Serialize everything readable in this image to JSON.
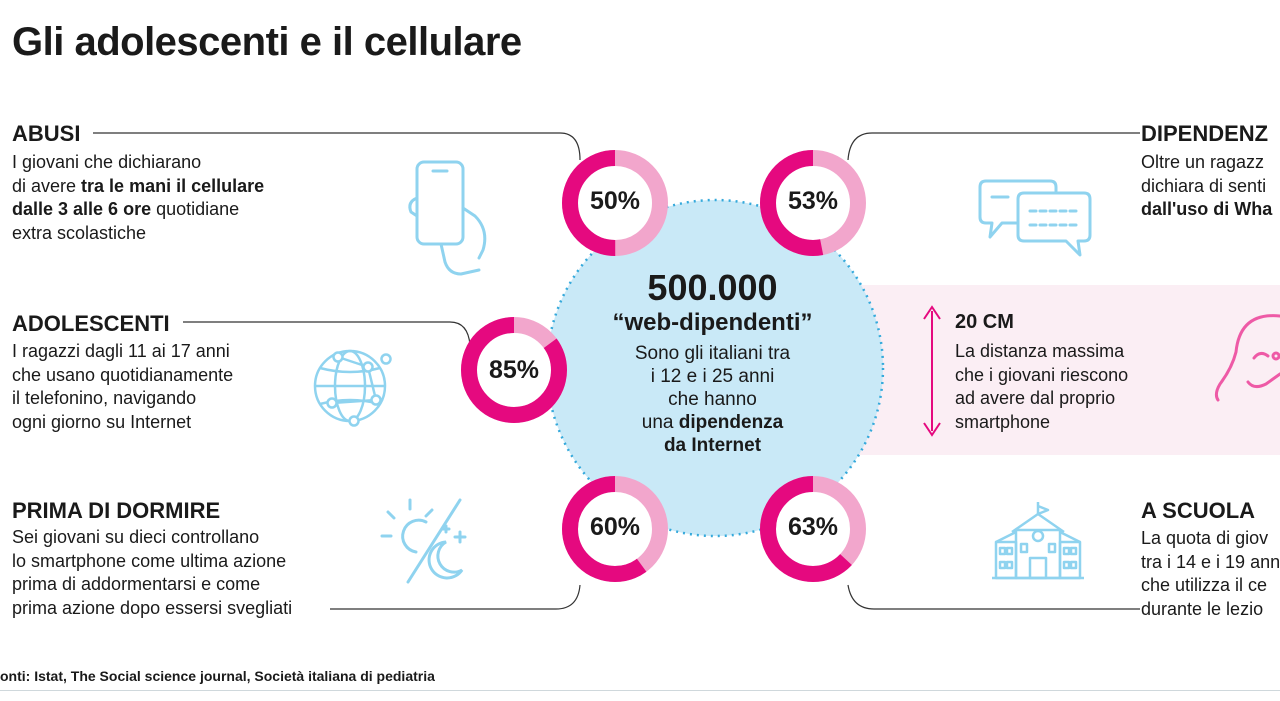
{
  "title": "Gli adolescenti e il cellulare",
  "colors": {
    "magenta": "#e5097f",
    "light_pink": "#f2a6cc",
    "bubble_blue": "#c9e9f7",
    "icon_blue": "#8fd3ef",
    "band_pink": "#fbeef4"
  },
  "sections": {
    "abusi": {
      "title": "ABUSI",
      "lines": [
        "I giovani che dichiarano",
        "tra le mani il cellulare",
        "dalle 3 alle 6 ore",
        "quotidiane",
        "extra scolastiche"
      ],
      "line2_pre": "di avere ",
      "line3_post": " quotidiane"
    },
    "adolescenti": {
      "title": "ADOLESCENTI",
      "lines": [
        "I ragazzi dagli 11 ai 17 anni",
        "che usano quotidianamente",
        "il telefonino, navigando",
        "ogni giorno su Internet"
      ]
    },
    "prima_di_dormire": {
      "title": "PRIMA DI DORMIRE",
      "lines": [
        "Sei giovani su dieci controllano",
        "lo smartphone come ultima azione",
        "prima di addormentarsi e come",
        "prima azione dopo essersi svegliati"
      ]
    },
    "dipendenza": {
      "title": "DIPENDENZ",
      "lines": [
        "Oltre un ragazz",
        "dichiara di senti",
        "dall'uso di Wha"
      ]
    },
    "distanza": {
      "title": "20 CM",
      "lines": [
        "La distanza massima",
        "che i giovani riescono",
        "ad avere dal proprio",
        "smartphone"
      ]
    },
    "a_scuola": {
      "title": "A SCUOLA",
      "lines": [
        "La quota di giov",
        "tra i 14 e i 19 ann",
        "che utilizza il ce",
        "durante le lezio"
      ]
    }
  },
  "center": {
    "number": "500.000",
    "subtitle": "“web-dipendenti”",
    "lines": [
      "Sono gli italiani tra",
      "i 12 e i 25 anni",
      "che hanno"
    ],
    "line4_pre": "una ",
    "line4_bold": "dipendenza",
    "line5_bold": "da Internet"
  },
  "chart_data": {
    "type": "pie",
    "title": "Gli adolescenti e il cellulare",
    "series": [
      {
        "name": "ABUSI",
        "value": 50,
        "label": "50%"
      },
      {
        "name": "ADOLESCENTI",
        "value": 85,
        "label": "85%"
      },
      {
        "name": "PRIMA DI DORMIRE",
        "value": 60,
        "label": "60%"
      },
      {
        "name": "DIPENDENZ",
        "value": 53,
        "label": "53%"
      },
      {
        "name": "A SCUOLA",
        "value": 63,
        "label": "63%"
      }
    ]
  },
  "footer": "onti: Istat, The Social science journal, Società italiana di pediatria"
}
